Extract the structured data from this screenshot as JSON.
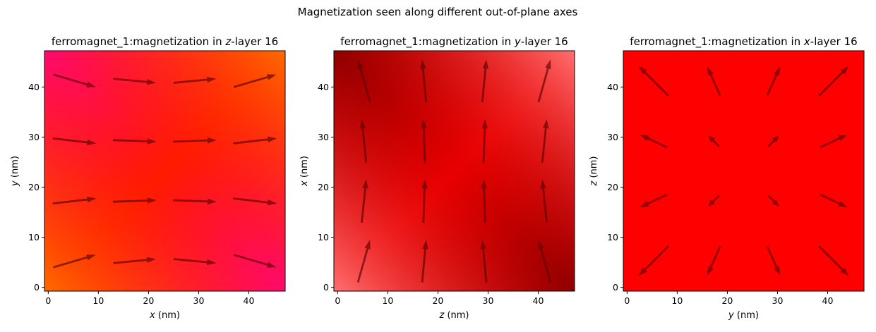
{
  "suptitle": "Magnetization seen along different out-of-plane axes",
  "colors": {
    "z_top_left": "#ff0a6e",
    "z_top_right": "#ff6a00",
    "z_bottom_left": "#ff6a00",
    "z_bottom_right": "#ff0a6e",
    "z_center": "#ff1a00",
    "y_top_left": "#8f0000",
    "y_top_right": "#ff7070",
    "y_bottom_left": "#ff7070",
    "y_bottom_right": "#8f0000",
    "y_center": "#e80000",
    "x_fill": "#ff0000",
    "arrow": "#5a0000"
  },
  "chart_data": [
    {
      "type": "quiver",
      "title": "ferromagnet_1:magnetization in z-layer 16",
      "title_prefix": "ferromagnet_1:magnetization in ",
      "title_italic": "z",
      "title_suffix": "-layer 16",
      "xlabel_var": "x",
      "xlabel_unit": " (nm)",
      "ylabel_var": "y",
      "ylabel_unit": " (nm)",
      "xlim": [
        -0.75,
        47.25
      ],
      "ylim": [
        -0.75,
        47.25
      ],
      "xticks": [
        0,
        10,
        20,
        30,
        40
      ],
      "yticks": [
        0,
        10,
        20,
        30,
        40
      ],
      "background": "z",
      "arrows": [
        {
          "x": 5.25,
          "y": 5.25,
          "u": 8.5,
          "v": 2.5
        },
        {
          "x": 17.25,
          "y": 5.25,
          "u": 8.5,
          "v": 0.8
        },
        {
          "x": 29.25,
          "y": 5.25,
          "u": 8.5,
          "v": -0.8
        },
        {
          "x": 41.25,
          "y": 5.25,
          "u": 8.5,
          "v": -2.5
        },
        {
          "x": 5.25,
          "y": 17.25,
          "u": 8.7,
          "v": 1.0
        },
        {
          "x": 17.25,
          "y": 17.25,
          "u": 8.7,
          "v": 0.3
        },
        {
          "x": 29.25,
          "y": 17.25,
          "u": 8.7,
          "v": -0.3
        },
        {
          "x": 41.25,
          "y": 17.25,
          "u": 8.7,
          "v": -1.0
        },
        {
          "x": 5.25,
          "y": 29.25,
          "u": 8.7,
          "v": -1.0
        },
        {
          "x": 17.25,
          "y": 29.25,
          "u": 8.7,
          "v": -0.3
        },
        {
          "x": 29.25,
          "y": 29.25,
          "u": 8.7,
          "v": 0.3
        },
        {
          "x": 41.25,
          "y": 29.25,
          "u": 8.7,
          "v": 1.0
        },
        {
          "x": 5.25,
          "y": 41.25,
          "u": 8.5,
          "v": -2.5
        },
        {
          "x": 17.25,
          "y": 41.25,
          "u": 8.5,
          "v": -0.8
        },
        {
          "x": 29.25,
          "y": 41.25,
          "u": 8.5,
          "v": 0.8
        },
        {
          "x": 41.25,
          "y": 41.25,
          "u": 8.5,
          "v": 2.5
        }
      ]
    },
    {
      "type": "quiver",
      "title": "ferromagnet_1:magnetization in y-layer 16",
      "title_prefix": "ferromagnet_1:magnetization in ",
      "title_italic": "y",
      "title_suffix": "-layer 16",
      "xlabel_var": "z",
      "xlabel_unit": " (nm)",
      "ylabel_var": "x",
      "ylabel_unit": " (nm)",
      "xlim": [
        -0.75,
        47.25
      ],
      "ylim": [
        -0.75,
        47.25
      ],
      "xticks": [
        0,
        10,
        20,
        30,
        40
      ],
      "yticks": [
        0,
        10,
        20,
        30,
        40
      ],
      "background": "y",
      "arrows": [
        {
          "x": 5.25,
          "y": 5.25,
          "u": 2.4,
          "v": 8.5
        },
        {
          "x": 17.25,
          "y": 5.25,
          "u": 0.8,
          "v": 8.5
        },
        {
          "x": 29.25,
          "y": 5.25,
          "u": -0.8,
          "v": 8.5
        },
        {
          "x": 41.25,
          "y": 5.25,
          "u": -2.4,
          "v": 8.5
        },
        {
          "x": 5.25,
          "y": 17.25,
          "u": 0.9,
          "v": 8.7
        },
        {
          "x": 17.25,
          "y": 17.25,
          "u": 0.3,
          "v": 8.7
        },
        {
          "x": 29.25,
          "y": 17.25,
          "u": -0.3,
          "v": 8.7
        },
        {
          "x": 41.25,
          "y": 17.25,
          "u": -0.9,
          "v": 8.7
        },
        {
          "x": 5.25,
          "y": 29.25,
          "u": -0.9,
          "v": 8.7
        },
        {
          "x": 17.25,
          "y": 29.25,
          "u": -0.3,
          "v": 8.7
        },
        {
          "x": 29.25,
          "y": 29.25,
          "u": 0.3,
          "v": 8.7
        },
        {
          "x": 41.25,
          "y": 29.25,
          "u": 0.9,
          "v": 8.7
        },
        {
          "x": 5.25,
          "y": 41.25,
          "u": -2.4,
          "v": 8.5
        },
        {
          "x": 17.25,
          "y": 41.25,
          "u": -0.8,
          "v": 8.5
        },
        {
          "x": 29.25,
          "y": 41.25,
          "u": 0.8,
          "v": 8.5
        },
        {
          "x": 41.25,
          "y": 41.25,
          "u": 2.4,
          "v": 8.5
        }
      ]
    },
    {
      "type": "quiver",
      "title": "ferromagnet_1:magnetization in x-layer 16",
      "title_prefix": "ferromagnet_1:magnetization in ",
      "title_italic": "x",
      "title_suffix": "-layer 16",
      "xlabel_var": "y",
      "xlabel_unit": " (nm)",
      "ylabel_var": "z",
      "ylabel_unit": " (nm)",
      "xlim": [
        -0.75,
        47.25
      ],
      "ylim": [
        -0.75,
        47.25
      ],
      "xticks": [
        0,
        10,
        20,
        30,
        40
      ],
      "yticks": [
        0,
        10,
        20,
        30,
        40
      ],
      "background": "x",
      "arrows": [
        {
          "x": 5.25,
          "y": 5.25,
          "u": -6.0,
          "v": -6.0
        },
        {
          "x": 17.25,
          "y": 5.25,
          "u": -2.6,
          "v": -5.8
        },
        {
          "x": 29.25,
          "y": 5.25,
          "u": 2.6,
          "v": -5.8
        },
        {
          "x": 41.25,
          "y": 5.25,
          "u": 6.0,
          "v": -6.0
        },
        {
          "x": 5.25,
          "y": 17.25,
          "u": -5.5,
          "v": -2.6
        },
        {
          "x": 17.25,
          "y": 17.25,
          "u": -2.2,
          "v": -2.2
        },
        {
          "x": 29.25,
          "y": 17.25,
          "u": 2.2,
          "v": -2.2
        },
        {
          "x": 41.25,
          "y": 17.25,
          "u": 5.5,
          "v": -2.6
        },
        {
          "x": 5.25,
          "y": 29.25,
          "u": -5.5,
          "v": 2.6
        },
        {
          "x": 17.25,
          "y": 29.25,
          "u": -2.2,
          "v": 2.2
        },
        {
          "x": 29.25,
          "y": 29.25,
          "u": 2.2,
          "v": 2.2
        },
        {
          "x": 41.25,
          "y": 29.25,
          "u": 5.5,
          "v": 2.6
        },
        {
          "x": 5.25,
          "y": 41.25,
          "u": -6.0,
          "v": 6.0
        },
        {
          "x": 17.25,
          "y": 41.25,
          "u": -2.6,
          "v": 5.8
        },
        {
          "x": 29.25,
          "y": 41.25,
          "u": 2.6,
          "v": 5.8
        },
        {
          "x": 41.25,
          "y": 41.25,
          "u": 6.0,
          "v": 6.0
        }
      ]
    }
  ]
}
